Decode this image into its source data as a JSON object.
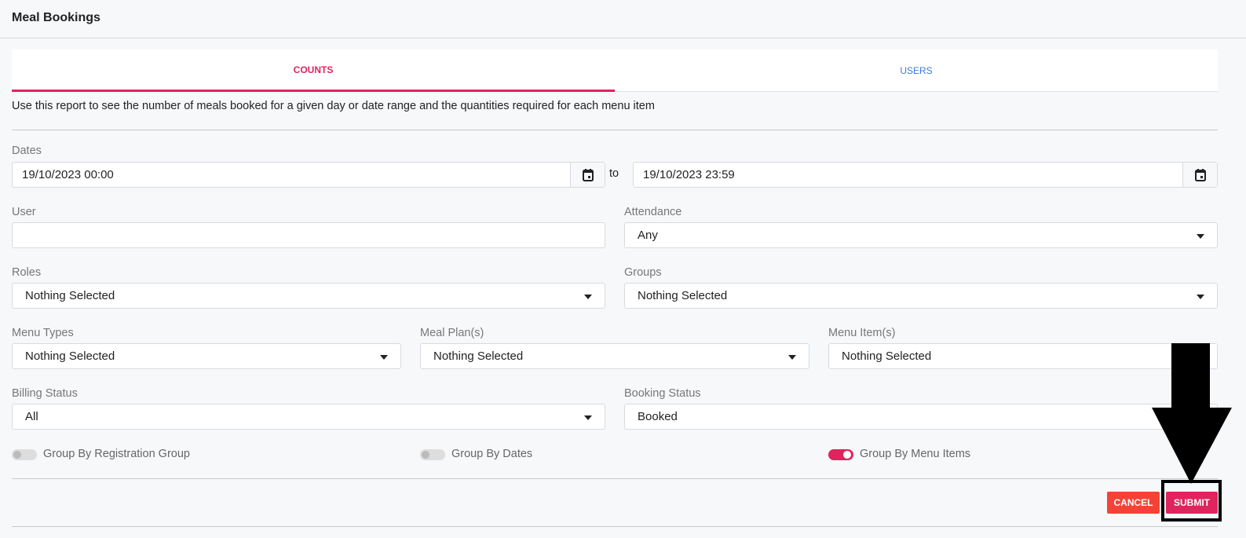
{
  "header": {
    "title": "Meal Bookings"
  },
  "tabs": [
    {
      "label": "COUNTS",
      "active": true
    },
    {
      "label": "USERS",
      "active": false
    }
  ],
  "description": "Use this report to see the number of meals booked for a given day or date range and the quantities required for each menu item",
  "form": {
    "dates": {
      "label": "Dates",
      "from": "19/10/2023 00:00",
      "to_label": "to",
      "to": "19/10/2023 23:59"
    },
    "user": {
      "label": "User",
      "value": ""
    },
    "attendance": {
      "label": "Attendance",
      "value": "Any"
    },
    "roles": {
      "label": "Roles",
      "value": "Nothing Selected"
    },
    "groups": {
      "label": "Groups",
      "value": "Nothing Selected"
    },
    "menu_types": {
      "label": "Menu Types",
      "value": "Nothing Selected"
    },
    "meal_plans": {
      "label": "Meal Plan(s)",
      "value": "Nothing Selected"
    },
    "menu_items": {
      "label": "Menu Item(s)",
      "value": "Nothing Selected"
    },
    "billing_status": {
      "label": "Billing Status",
      "value": "All"
    },
    "booking_status": {
      "label": "Booking Status",
      "value": "Booked"
    },
    "toggles": [
      {
        "label": "Group By Registration Group",
        "on": false
      },
      {
        "label": "Group By Dates",
        "on": false
      },
      {
        "label": "Group By Menu Items",
        "on": true
      }
    ]
  },
  "buttons": {
    "cancel": "CANCEL",
    "submit": "SUBMIT"
  },
  "colors": {
    "accent": "#e0245e",
    "link": "#3d7be0",
    "cancel": "#f44336",
    "annotation": "#000000"
  }
}
